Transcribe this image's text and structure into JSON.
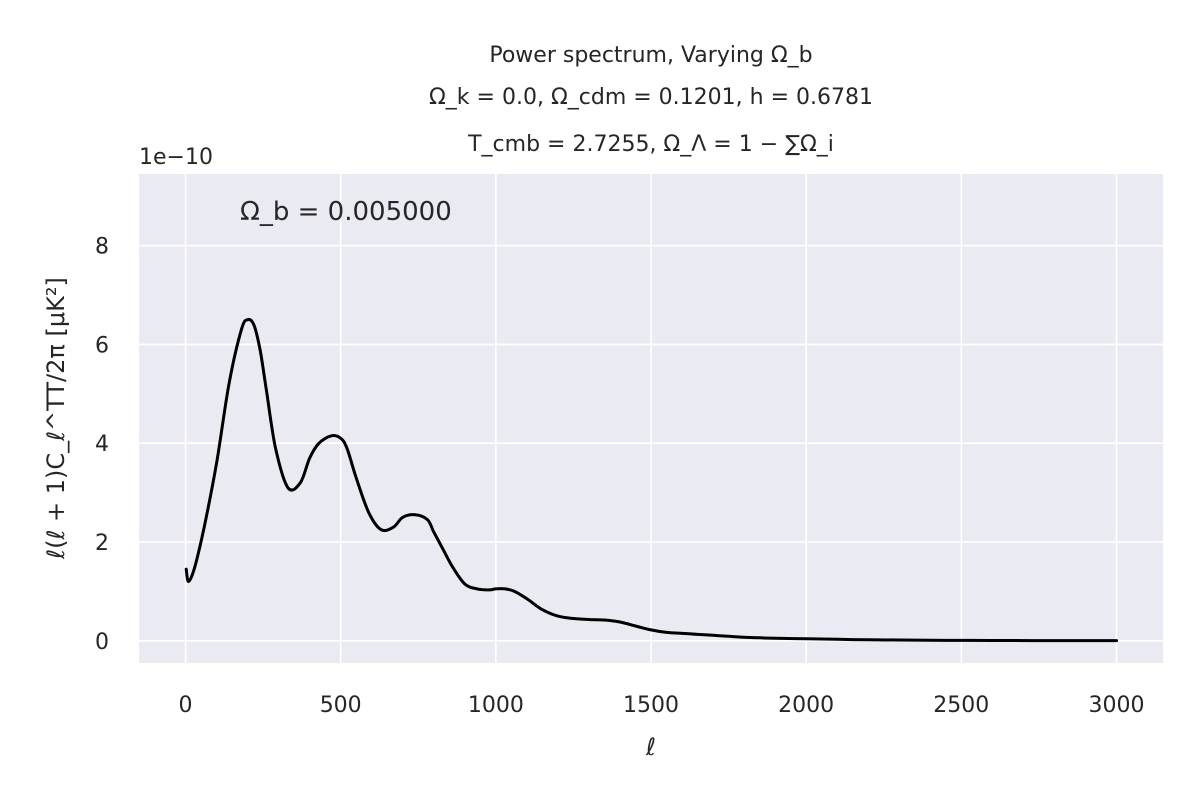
{
  "chart_data": {
    "type": "line",
    "title_lines": [
      "Power spectrum, Varying Ω_b",
      "Ω_k = 0.0, Ω_cdm = 0.1201, h = 0.6781",
      "T_cmb = 2.7255, Ω_Λ = 1 − ∑Ω_i"
    ],
    "xlabel": "ℓ",
    "ylabel": "ℓ(ℓ + 1)C_ℓ^TT/2π    [μK²]",
    "y_offset_text": "1e−10",
    "annotation": "Ω_b = 0.005000",
    "xlim": [
      -150,
      3150
    ],
    "ylim": [
      -0.45,
      9.45
    ],
    "x_ticks": [
      0,
      500,
      1000,
      1500,
      2000,
      2500,
      3000
    ],
    "y_ticks": [
      0,
      2,
      4,
      6,
      8
    ],
    "grid": true,
    "legend": "none",
    "background_color": "#eaeaf2",
    "line_color": "#000000",
    "series": [
      {
        "x": [
          2,
          10,
          30,
          60,
          100,
          140,
          180,
          200,
          220,
          240,
          260,
          290,
          330,
          370,
          400,
          430,
          470,
          500,
          520,
          550,
          590,
          630,
          670,
          700,
          740,
          780,
          800,
          830,
          860,
          900,
          940,
          980,
          1000,
          1030,
          1060,
          1100,
          1150,
          1200,
          1250,
          1300,
          1350,
          1400,
          1450,
          1500,
          1550,
          1600,
          1650,
          1700,
          1750,
          1800,
          1850,
          1900,
          2000,
          2100,
          2200,
          2300,
          2400,
          2500,
          2600,
          2800,
          3000
        ],
        "y": [
          1.45,
          1.2,
          1.5,
          2.3,
          3.6,
          5.2,
          6.3,
          6.5,
          6.4,
          5.9,
          5.1,
          3.9,
          3.1,
          3.2,
          3.7,
          4.0,
          4.15,
          4.1,
          3.9,
          3.3,
          2.6,
          2.25,
          2.3,
          2.5,
          2.55,
          2.45,
          2.2,
          1.85,
          1.5,
          1.15,
          1.05,
          1.03,
          1.05,
          1.05,
          1.0,
          0.85,
          0.63,
          0.5,
          0.45,
          0.43,
          0.42,
          0.38,
          0.3,
          0.22,
          0.17,
          0.15,
          0.13,
          0.11,
          0.09,
          0.07,
          0.06,
          0.05,
          0.04,
          0.03,
          0.02,
          0.015,
          0.01,
          0.008,
          0.006,
          0.004,
          0.003
        ]
      }
    ]
  }
}
